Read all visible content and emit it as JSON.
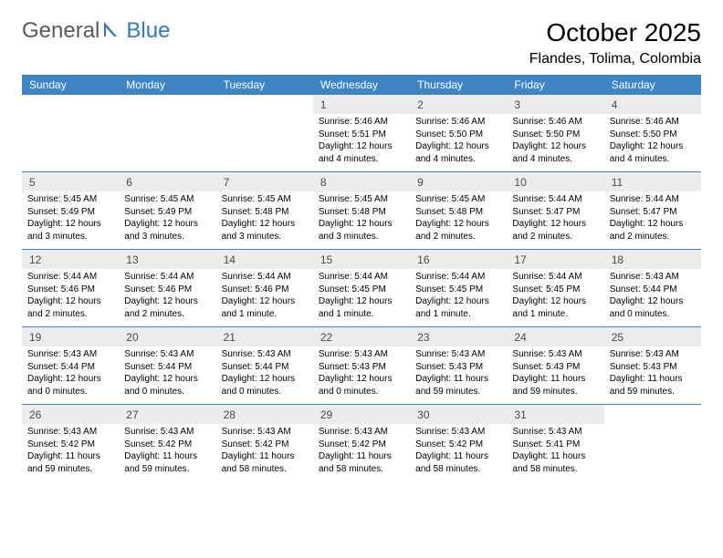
{
  "brand": {
    "part1": "General",
    "part2": "Blue"
  },
  "title": "October 2025",
  "location": "Flandes, Tolima, Colombia",
  "colors": {
    "header_bg": "#3e85c6",
    "header_text": "#ffffff",
    "daynum_bg": "#ececec",
    "daynum_text": "#4a4a4a",
    "week_border": "#3e85c6",
    "brand_gray": "#5a5a5a",
    "brand_blue": "#2d7bc0"
  },
  "fonts": {
    "title_size_pt": 21,
    "location_size_pt": 12,
    "weekday_size_pt": 9,
    "daynum_size_pt": 9,
    "body_size_pt": 7.5
  },
  "weekdays": [
    "Sunday",
    "Monday",
    "Tuesday",
    "Wednesday",
    "Thursday",
    "Friday",
    "Saturday"
  ],
  "weeks": [
    [
      null,
      null,
      null,
      {
        "n": "1",
        "sunrise": "5:46 AM",
        "sunset": "5:51 PM",
        "daylight": "12 hours and 4 minutes."
      },
      {
        "n": "2",
        "sunrise": "5:46 AM",
        "sunset": "5:50 PM",
        "daylight": "12 hours and 4 minutes."
      },
      {
        "n": "3",
        "sunrise": "5:46 AM",
        "sunset": "5:50 PM",
        "daylight": "12 hours and 4 minutes."
      },
      {
        "n": "4",
        "sunrise": "5:46 AM",
        "sunset": "5:50 PM",
        "daylight": "12 hours and 4 minutes."
      }
    ],
    [
      {
        "n": "5",
        "sunrise": "5:45 AM",
        "sunset": "5:49 PM",
        "daylight": "12 hours and 3 minutes."
      },
      {
        "n": "6",
        "sunrise": "5:45 AM",
        "sunset": "5:49 PM",
        "daylight": "12 hours and 3 minutes."
      },
      {
        "n": "7",
        "sunrise": "5:45 AM",
        "sunset": "5:48 PM",
        "daylight": "12 hours and 3 minutes."
      },
      {
        "n": "8",
        "sunrise": "5:45 AM",
        "sunset": "5:48 PM",
        "daylight": "12 hours and 3 minutes."
      },
      {
        "n": "9",
        "sunrise": "5:45 AM",
        "sunset": "5:48 PM",
        "daylight": "12 hours and 2 minutes."
      },
      {
        "n": "10",
        "sunrise": "5:44 AM",
        "sunset": "5:47 PM",
        "daylight": "12 hours and 2 minutes."
      },
      {
        "n": "11",
        "sunrise": "5:44 AM",
        "sunset": "5:47 PM",
        "daylight": "12 hours and 2 minutes."
      }
    ],
    [
      {
        "n": "12",
        "sunrise": "5:44 AM",
        "sunset": "5:46 PM",
        "daylight": "12 hours and 2 minutes."
      },
      {
        "n": "13",
        "sunrise": "5:44 AM",
        "sunset": "5:46 PM",
        "daylight": "12 hours and 2 minutes."
      },
      {
        "n": "14",
        "sunrise": "5:44 AM",
        "sunset": "5:46 PM",
        "daylight": "12 hours and 1 minute."
      },
      {
        "n": "15",
        "sunrise": "5:44 AM",
        "sunset": "5:45 PM",
        "daylight": "12 hours and 1 minute."
      },
      {
        "n": "16",
        "sunrise": "5:44 AM",
        "sunset": "5:45 PM",
        "daylight": "12 hours and 1 minute."
      },
      {
        "n": "17",
        "sunrise": "5:44 AM",
        "sunset": "5:45 PM",
        "daylight": "12 hours and 1 minute."
      },
      {
        "n": "18",
        "sunrise": "5:43 AM",
        "sunset": "5:44 PM",
        "daylight": "12 hours and 0 minutes."
      }
    ],
    [
      {
        "n": "19",
        "sunrise": "5:43 AM",
        "sunset": "5:44 PM",
        "daylight": "12 hours and 0 minutes."
      },
      {
        "n": "20",
        "sunrise": "5:43 AM",
        "sunset": "5:44 PM",
        "daylight": "12 hours and 0 minutes."
      },
      {
        "n": "21",
        "sunrise": "5:43 AM",
        "sunset": "5:44 PM",
        "daylight": "12 hours and 0 minutes."
      },
      {
        "n": "22",
        "sunrise": "5:43 AM",
        "sunset": "5:43 PM",
        "daylight": "12 hours and 0 minutes."
      },
      {
        "n": "23",
        "sunrise": "5:43 AM",
        "sunset": "5:43 PM",
        "daylight": "11 hours and 59 minutes."
      },
      {
        "n": "24",
        "sunrise": "5:43 AM",
        "sunset": "5:43 PM",
        "daylight": "11 hours and 59 minutes."
      },
      {
        "n": "25",
        "sunrise": "5:43 AM",
        "sunset": "5:43 PM",
        "daylight": "11 hours and 59 minutes."
      }
    ],
    [
      {
        "n": "26",
        "sunrise": "5:43 AM",
        "sunset": "5:42 PM",
        "daylight": "11 hours and 59 minutes."
      },
      {
        "n": "27",
        "sunrise": "5:43 AM",
        "sunset": "5:42 PM",
        "daylight": "11 hours and 59 minutes."
      },
      {
        "n": "28",
        "sunrise": "5:43 AM",
        "sunset": "5:42 PM",
        "daylight": "11 hours and 58 minutes."
      },
      {
        "n": "29",
        "sunrise": "5:43 AM",
        "sunset": "5:42 PM",
        "daylight": "11 hours and 58 minutes."
      },
      {
        "n": "30",
        "sunrise": "5:43 AM",
        "sunset": "5:42 PM",
        "daylight": "11 hours and 58 minutes."
      },
      {
        "n": "31",
        "sunrise": "5:43 AM",
        "sunset": "5:41 PM",
        "daylight": "11 hours and 58 minutes."
      },
      null
    ]
  ],
  "labels": {
    "sunrise": "Sunrise:",
    "sunset": "Sunset:",
    "daylight": "Daylight:"
  }
}
